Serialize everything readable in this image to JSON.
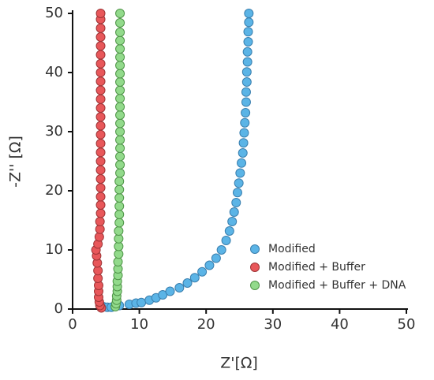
{
  "chart_data": {
    "type": "scatter",
    "xlabel": "Z'[Ω]",
    "ylabel": "-Z'' [Ω]",
    "xlim": [
      0,
      50
    ],
    "ylim": [
      0,
      50
    ],
    "xticks": [
      0,
      10,
      20,
      30,
      40,
      50
    ],
    "yticks": [
      0,
      10,
      20,
      30,
      40,
      50
    ],
    "grid": false,
    "legend": "right",
    "series": [
      {
        "name": "Modified",
        "color": "#5bb4e6",
        "edge": "#3a7fae",
        "x": [
          4.6,
          5.2,
          5.8,
          7.0,
          8.5,
          9.5,
          10.3,
          11.5,
          12.5,
          13.5,
          14.6,
          16.0,
          17.2,
          18.3,
          19.4,
          20.5,
          21.5,
          22.3,
          23.0,
          23.5,
          23.9,
          24.2,
          24.5,
          24.7,
          24.9,
          25.1,
          25.3,
          25.5,
          25.6,
          25.7,
          25.8,
          25.9,
          26.0,
          26.0,
          26.1,
          26.1,
          26.2,
          26.2,
          26.3,
          26.3,
          26.4,
          26.4
        ],
        "values": [
          0.4,
          0.3,
          0.3,
          0.6,
          0.8,
          1.0,
          1.1,
          1.5,
          1.9,
          2.4,
          3.0,
          3.6,
          4.4,
          5.3,
          6.3,
          7.4,
          8.6,
          10.0,
          11.6,
          13.2,
          14.8,
          16.4,
          18.0,
          19.7,
          21.3,
          23.0,
          24.7,
          26.4,
          28.1,
          29.8,
          31.5,
          33.2,
          35.0,
          36.7,
          38.4,
          40.1,
          41.8,
          43.5,
          45.2,
          46.9,
          48.5,
          50.0
        ]
      },
      {
        "name": "Modified + Buffer",
        "color": "#e8575a",
        "edge": "#9e3436",
        "x": [
          4.3,
          4.1,
          4.0,
          3.9,
          3.9,
          3.9,
          3.8,
          3.8,
          3.7,
          3.6,
          3.5,
          3.8,
          4.0,
          4.1,
          4.1,
          4.2,
          4.2,
          4.2,
          4.2,
          4.2,
          4.2,
          4.2,
          4.2,
          4.2,
          4.2,
          4.2,
          4.2,
          4.2,
          4.2,
          4.2,
          4.2,
          4.2,
          4.2,
          4.2,
          4.2,
          4.2,
          4.2,
          4.2,
          4.2
        ],
        "values": [
          0.2,
          0.6,
          1.2,
          2.0,
          3.0,
          4.0,
          5.2,
          6.5,
          7.8,
          9.0,
          10.0,
          11.0,
          12.2,
          13.5,
          14.8,
          16.2,
          17.6,
          19.0,
          20.5,
          22.0,
          23.5,
          25.0,
          26.5,
          28.0,
          29.5,
          31.0,
          32.5,
          34.0,
          35.5,
          37.0,
          38.5,
          40.0,
          41.5,
          43.0,
          44.5,
          46.0,
          47.5,
          49.0,
          50.0
        ]
      },
      {
        "name": "Modified + Buffer + DNA",
        "color": "#92da8b",
        "edge": "#4f9448",
        "x": [
          6.4,
          6.5,
          6.6,
          6.6,
          6.7,
          6.7,
          6.7,
          6.8,
          6.8,
          6.8,
          6.9,
          6.9,
          6.9,
          6.9,
          7.0,
          7.0,
          7.0,
          7.0,
          7.0,
          7.0,
          7.1,
          7.1,
          7.1,
          7.1,
          7.1,
          7.1,
          7.1,
          7.1,
          7.1,
          7.1,
          7.1,
          7.1,
          7.1,
          7.1,
          7.1,
          7.1,
          7.1,
          7.1,
          7.1,
          7.1
        ],
        "values": [
          0.4,
          0.9,
          1.5,
          2.2,
          3.0,
          3.8,
          4.7,
          5.7,
          6.8,
          8.0,
          9.3,
          10.6,
          11.9,
          13.2,
          14.6,
          16.0,
          17.4,
          18.8,
          20.2,
          21.6,
          23.0,
          24.4,
          25.8,
          27.2,
          28.6,
          30.0,
          31.4,
          32.8,
          34.2,
          35.6,
          37.0,
          38.4,
          39.8,
          41.2,
          42.6,
          44.0,
          45.4,
          46.8,
          48.4,
          50.0
        ]
      }
    ]
  }
}
